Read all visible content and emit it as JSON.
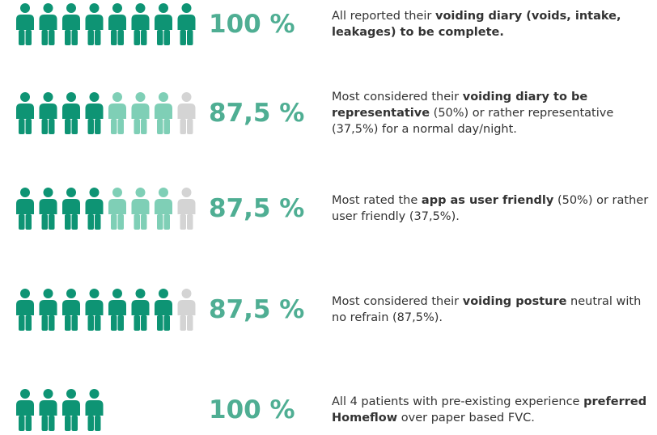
{
  "rows": [
    {
      "percent": "100 %",
      "icons": [
        {
          "count": 8,
          "color": "#0e9474"
        }
      ],
      "text": [
        {
          "t": "All reported their "
        },
        {
          "t": "voiding diary (voids, intake, leakages) to be complete.",
          "bold": true
        }
      ]
    },
    {
      "percent": "87,5 %",
      "icons": [
        {
          "count": 4,
          "color": "#0e9474"
        },
        {
          "count": 3,
          "color": "#7fcfb6"
        },
        {
          "count": 1,
          "color": "#d4d4d4"
        }
      ],
      "text": [
        {
          "t": "Most considered their "
        },
        {
          "t": "voiding diary to be representative",
          "bold": true
        },
        {
          "t": " (50%) or rather representative (37,5%) for a normal day/night."
        }
      ]
    },
    {
      "percent": "87,5 %",
      "icons": [
        {
          "count": 4,
          "color": "#0e9474"
        },
        {
          "count": 3,
          "color": "#7fcfb6"
        },
        {
          "count": 1,
          "color": "#d4d4d4"
        }
      ],
      "text": [
        {
          "t": "Most rated the "
        },
        {
          "t": "app as user friendly",
          "bold": true
        },
        {
          "t": " (50%) or rather user friendly (37,5%)."
        }
      ]
    },
    {
      "percent": "87,5 %",
      "icons": [
        {
          "count": 7,
          "color": "#0e9474"
        },
        {
          "count": 1,
          "color": "#d4d4d4"
        }
      ],
      "text": [
        {
          "t": "Most considered their "
        },
        {
          "t": "voiding posture",
          "bold": true
        },
        {
          "t": " neutral with no refrain (87,5%)."
        }
      ]
    },
    {
      "percent": "100 %",
      "icons": [
        {
          "count": 4,
          "color": "#0e9474"
        }
      ],
      "text": [
        {
          "t": "All 4 patients with pre-existing experience "
        },
        {
          "t": "preferred Homeflow",
          "bold": true
        },
        {
          "t": " over paper based FVC."
        }
      ]
    }
  ]
}
